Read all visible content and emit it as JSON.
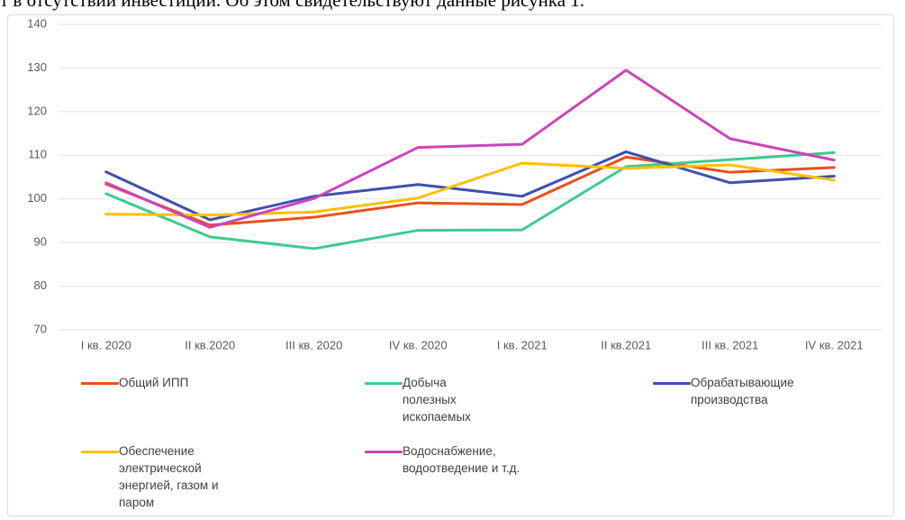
{
  "text_above": "т в отсутствии инвестиций. Об этом свидетельствуют данные рисунка 1.",
  "chart_data": {
    "type": "line",
    "categories": [
      "I кв. 2020",
      "II кв.2020",
      "III кв. 2020",
      "IV кв. 2020",
      "I кв. 2021",
      "II кв.2021",
      "III кв. 2021",
      "IV кв. 2021"
    ],
    "series": [
      {
        "name": "Общий ИПП",
        "color": "#e8501e",
        "values": [
          103.4,
          94,
          95.8,
          99.1,
          98.7,
          109.6,
          106.1,
          107.2
        ]
      },
      {
        "name": "Добыча полезных ископаемых",
        "color": "#3dcc8e",
        "values": [
          101.2,
          91.3,
          88.6,
          92.8,
          92.9,
          107.4,
          109,
          110.6
        ]
      },
      {
        "name": "Обрабатывающие производства",
        "color": "#3f4fb0",
        "values": [
          106.2,
          95.2,
          100.6,
          103.3,
          100.6,
          110.8,
          103.7,
          105.2
        ]
      },
      {
        "name": "Обеспечение электрической энергией, газом и паром",
        "color": "#ffc000",
        "values": [
          96.5,
          96.3,
          97,
          100.2,
          108.2,
          107,
          107.8,
          104.3
        ]
      },
      {
        "name": "Водоснабжение, водоотведение и т.д.",
        "color": "#cc44bb",
        "values": [
          103.7,
          93.5,
          100.1,
          111.8,
          112.5,
          129.5,
          113.8,
          108.9
        ]
      }
    ],
    "ylim": [
      70,
      140
    ],
    "yticks": [
      70,
      80,
      90,
      100,
      110,
      120,
      130,
      140
    ],
    "grid": true,
    "legend": "bottom"
  }
}
